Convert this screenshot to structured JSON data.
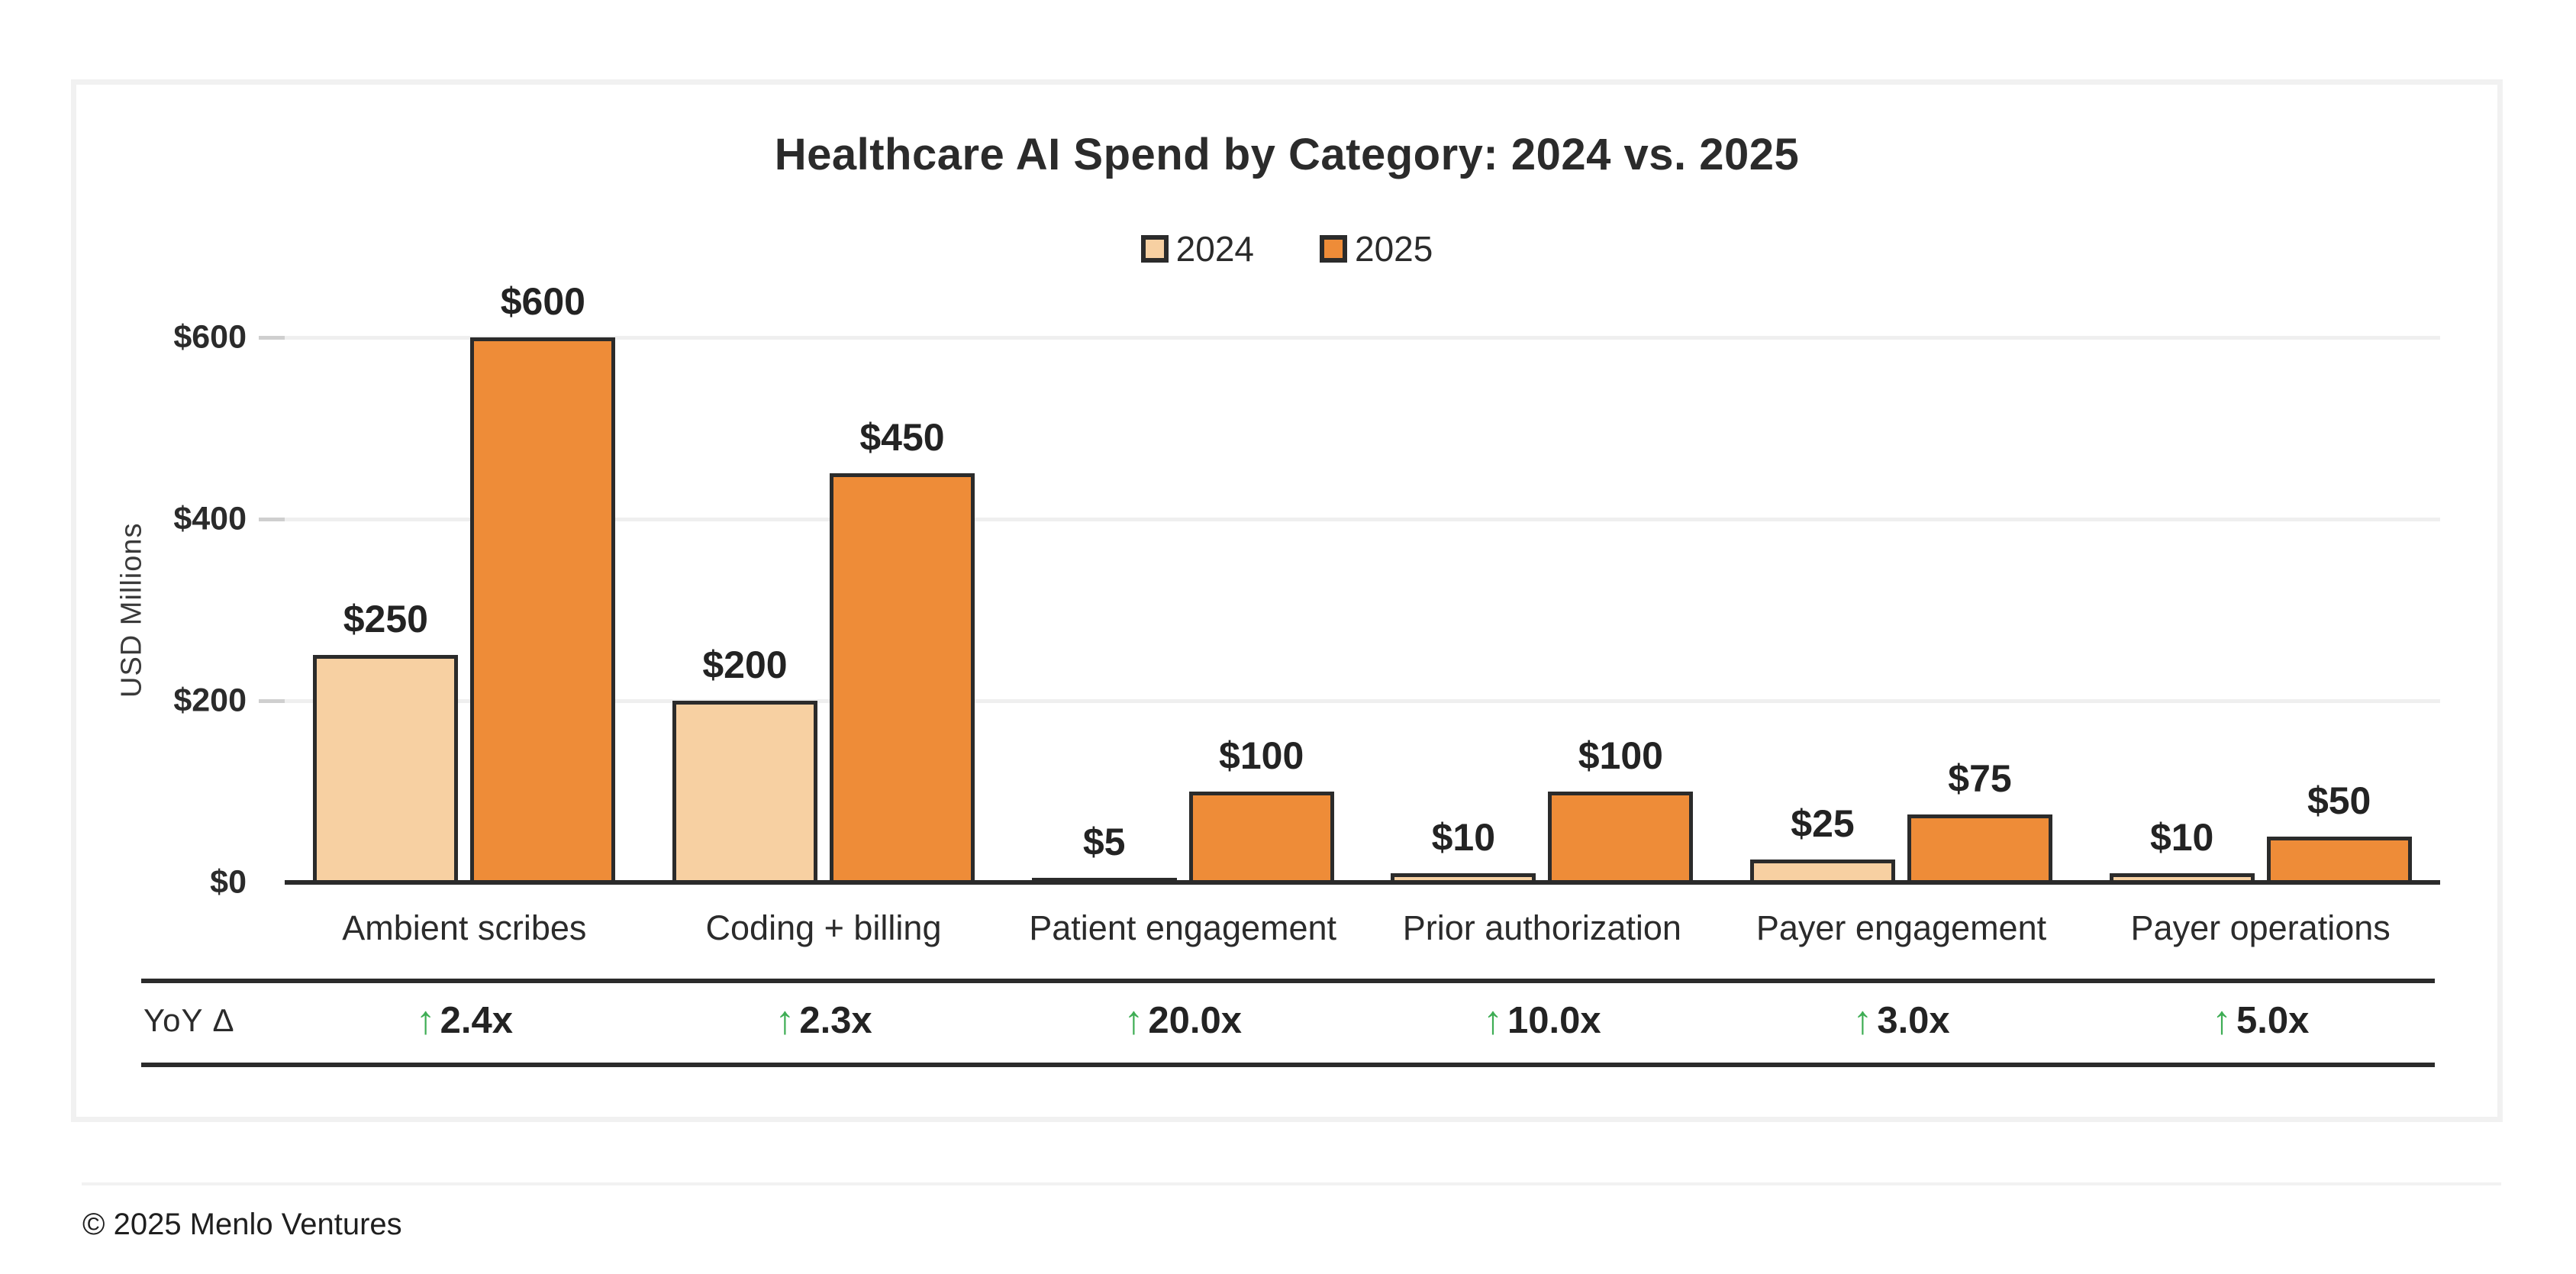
{
  "title": "Healthcare AI Spend by Category: 2024 vs. 2025",
  "footer": {
    "copyright": "© 2025 Menlo Ventures"
  },
  "colors": {
    "series_2024": "#F7D0A2",
    "series_2025": "#EE8C38",
    "bar_outline": "#2b2b2b",
    "yoy_arrow_green": "#3EAD54",
    "gridline": "#efefef",
    "text_dark": "#2b2b2b"
  },
  "yoy": {
    "row_label": "YoY Δ",
    "arrow": "↑",
    "values": [
      "2.4x",
      "2.3x",
      "20.0x",
      "10.0x",
      "3.0x",
      "5.0x"
    ]
  },
  "chart_data": {
    "type": "bar",
    "title": "Healthcare AI Spend by Category: 2024 vs. 2025",
    "categories": [
      "Ambient scribes",
      "Coding + billing",
      "Patient engagement",
      "Prior authorization",
      "Payer engagement",
      "Payer operations"
    ],
    "series": [
      {
        "name": "2024",
        "color": "#F7D0A2",
        "values": [
          250,
          200,
          5,
          10,
          25,
          10
        ],
        "labels": [
          "$250",
          "$200",
          "$5",
          "$10",
          "$25",
          "$10"
        ]
      },
      {
        "name": "2025",
        "color": "#EE8C38",
        "values": [
          600,
          450,
          100,
          100,
          75,
          50
        ],
        "labels": [
          "$600",
          "$450",
          "$100",
          "$100",
          "$75",
          "$50"
        ]
      }
    ],
    "ylabel": "USD Millions",
    "xlabel": "",
    "ylim": [
      0,
      600
    ],
    "yticks": [
      {
        "value": 0,
        "label": "$0"
      },
      {
        "value": 200,
        "label": "$200"
      },
      {
        "value": 400,
        "label": "$400"
      },
      {
        "value": 600,
        "label": "$600"
      }
    ],
    "grid": true,
    "legend_position": "top-center",
    "yoy_delta": [
      "↑2.4x",
      "↑2.3x",
      "↑20.0x",
      "↑10.0x",
      "↑3.0x",
      "↑5.0x"
    ]
  }
}
